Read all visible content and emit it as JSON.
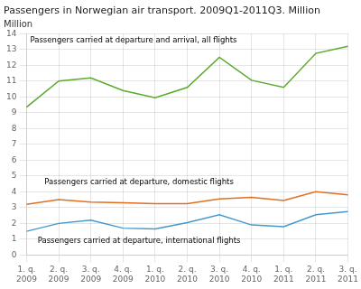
{
  "chart_data": {
    "type": "line",
    "title": "Passengers in Norwegian air transport. 2009Q1-2011Q3. Million",
    "ylabel": "Million",
    "categories": [
      "1. q.\n2009",
      "2. q.\n2009",
      "3. q.\n2009",
      "4. q.\n2009",
      "1. q.\n2010",
      "2. q.\n2010",
      "3. q.\n2010",
      "4. q.\n2010",
      "1. q.\n2011",
      "2. q.\n2011",
      "3. q.\n2011"
    ],
    "series": [
      {
        "name": "Passengers carried at departure and arrival, all flights",
        "color": "#5aaa2a",
        "values": [
          9.35,
          11.0,
          11.2,
          10.4,
          9.95,
          10.6,
          12.5,
          11.05,
          10.6,
          12.75,
          13.2
        ]
      },
      {
        "name": "Passengers carried at departure, domestic flights",
        "color": "#e07020",
        "values": [
          3.2,
          3.5,
          3.35,
          3.3,
          3.25,
          3.25,
          3.55,
          3.65,
          3.45,
          4.0,
          3.8
        ]
      },
      {
        "name": "Passengers carried at departure, international flights",
        "color": "#4499cc",
        "values": [
          1.5,
          2.0,
          2.2,
          1.7,
          1.65,
          2.05,
          2.55,
          1.9,
          1.8,
          2.55,
          2.75
        ]
      }
    ],
    "ylim": [
      0,
      14
    ],
    "yticks": [
      0,
      1,
      2,
      3,
      4,
      5,
      6,
      7,
      8,
      9,
      10,
      11,
      12,
      13,
      14
    ],
    "grid": true
  }
}
